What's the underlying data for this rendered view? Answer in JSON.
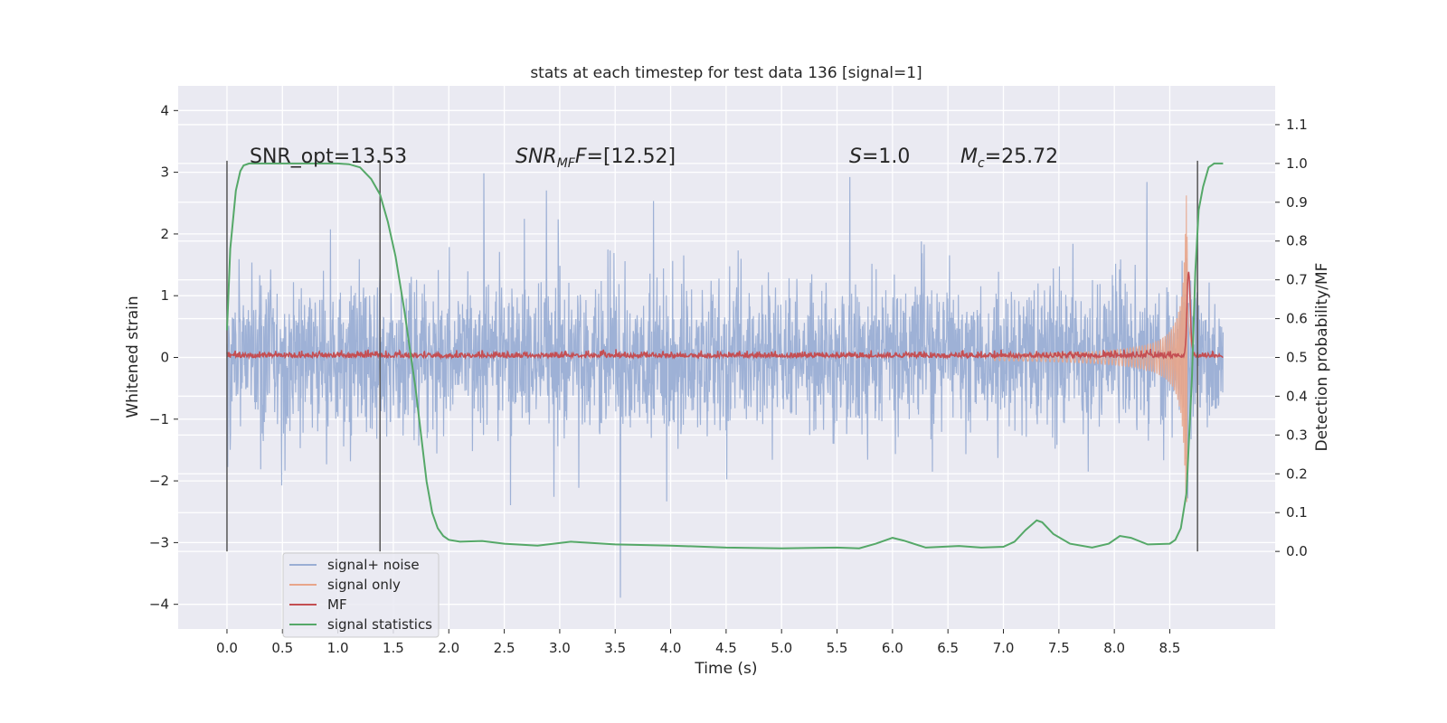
{
  "chart_data": {
    "type": "line",
    "title": "stats at each timestep for test data 136 [signal=1]",
    "xlabel": "Time (s)",
    "ylabel": "Whitened strain",
    "y2label": "Detection probability/MF",
    "xlim": [
      -0.44,
      9.45
    ],
    "ylim": [
      -4.4,
      4.4
    ],
    "y2lim": [
      -0.2,
      1.2
    ],
    "x_ticks": [
      "0.0",
      "0.5",
      "1.0",
      "1.5",
      "2.0",
      "2.5",
      "3.0",
      "3.5",
      "4.0",
      "4.5",
      "5.0",
      "5.5",
      "6.0",
      "6.5",
      "7.0",
      "7.5",
      "8.0",
      "8.5"
    ],
    "y_ticks": [
      "4",
      "3",
      "2",
      "1",
      "0",
      "−1",
      "−2",
      "−3",
      "−4"
    ],
    "y2_ticks": [
      "1.1",
      "1.0",
      "0.9",
      "0.8",
      "0.7",
      "0.6",
      "0.5",
      "0.4",
      "0.3",
      "0.2",
      "0.1",
      "0.0"
    ],
    "grid": true,
    "legend_placement": "lower-left",
    "annotations": {
      "snr_opt": "SNR_opt=13.53",
      "snr_mf_sym": "SNR",
      "snr_mf_sub": "MF",
      "snr_mf_rest": "=[12.52]",
      "s_sym": "S",
      "s_rest": "=1.0",
      "mc_sym": "M",
      "mc_sub": "c",
      "mc_rest": "=25.72"
    },
    "vertical_lines": [
      0.0,
      1.38,
      8.75
    ],
    "series": [
      {
        "name": "signal+ noise",
        "color": "#9aaed4",
        "kind": "noise",
        "x_range": [
          0.0,
          8.98
        ],
        "typical_envelope": 1.25,
        "peak_range": [
          -4.0,
          4.0
        ]
      },
      {
        "name": "signal only",
        "color": "#e8a58a",
        "kind": "chirp",
        "x_range": [
          6.9,
          8.75
        ],
        "peak_time": 8.65,
        "peak_amplitude": 2.9
      },
      {
        "name": "MF",
        "color": "#c44e52",
        "kind": "noisy",
        "axis": "right",
        "x_range": [
          0.0,
          8.98
        ],
        "baseline": 0.5,
        "peak": {
          "x": 8.67,
          "y": 0.72
        }
      },
      {
        "name": "signal statistics",
        "color": "#55a868",
        "axis": "right",
        "x": [
          0.0,
          0.03,
          0.08,
          0.12,
          0.15,
          0.2,
          0.3,
          0.5,
          0.8,
          1.0,
          1.1,
          1.2,
          1.3,
          1.38,
          1.45,
          1.52,
          1.6,
          1.65,
          1.7,
          1.75,
          1.8,
          1.85,
          1.9,
          1.95,
          2.0,
          2.1,
          2.3,
          2.5,
          2.8,
          3.1,
          3.5,
          4.0,
          4.5,
          5.0,
          5.5,
          5.7,
          5.85,
          6.0,
          6.1,
          6.3,
          6.6,
          6.8,
          7.0,
          7.1,
          7.2,
          7.3,
          7.35,
          7.45,
          7.6,
          7.8,
          7.95,
          8.05,
          8.15,
          8.3,
          8.5,
          8.55,
          8.6,
          8.65,
          8.7,
          8.73,
          8.76,
          8.8,
          8.85,
          8.9,
          8.98
        ],
        "y": [
          0.57,
          0.78,
          0.93,
          0.98,
          0.995,
          1.0,
          1.0,
          1.0,
          1.0,
          1.0,
          0.998,
          0.99,
          0.96,
          0.92,
          0.85,
          0.76,
          0.62,
          0.52,
          0.42,
          0.3,
          0.18,
          0.1,
          0.06,
          0.04,
          0.03,
          0.025,
          0.027,
          0.02,
          0.015,
          0.025,
          0.018,
          0.015,
          0.01,
          0.008,
          0.01,
          0.008,
          0.02,
          0.035,
          0.028,
          0.01,
          0.014,
          0.01,
          0.012,
          0.025,
          0.055,
          0.08,
          0.075,
          0.045,
          0.02,
          0.01,
          0.02,
          0.04,
          0.035,
          0.018,
          0.02,
          0.03,
          0.06,
          0.15,
          0.45,
          0.72,
          0.88,
          0.94,
          0.99,
          1.0,
          1.0
        ]
      }
    ]
  }
}
